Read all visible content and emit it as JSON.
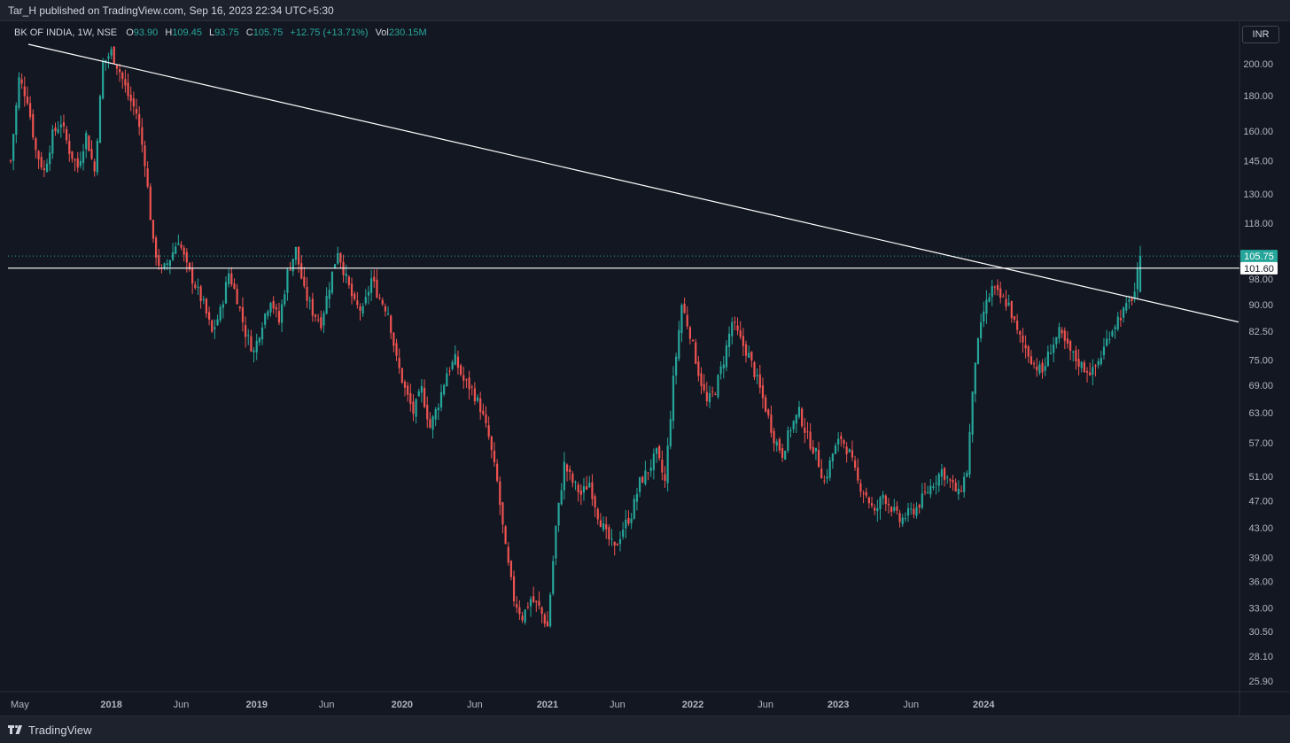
{
  "header": {
    "published_text": "Tar_H published on TradingView.com, Sep 16, 2023 22:34 UTC+5:30"
  },
  "legend": {
    "symbol": "BK OF INDIA, 1W, NSE",
    "open_label": "O",
    "open": "93.90",
    "high_label": "H",
    "high": "109.45",
    "low_label": "L",
    "low": "93.75",
    "close_label": "C",
    "close": "105.75",
    "change": "+12.75 (+13.71%)",
    "vol_label": "Vol",
    "vol": "230.15M"
  },
  "currency": "INR",
  "footer": {
    "brand": "TradingView"
  },
  "colors": {
    "up": "#26a69a",
    "down": "#ef5350",
    "background": "#131722",
    "line": "#d1d4dc"
  },
  "chart_data": {
    "type": "candlestick",
    "y_scale": "log",
    "ylim": [
      25.0,
      212.0
    ],
    "y_ticks": [
      "200.00",
      "180.00",
      "160.00",
      "145.00",
      "130.00",
      "118.00",
      "98.00",
      "90.00",
      "82.50",
      "75.00",
      "69.00",
      "63.00",
      "57.00",
      "51.00",
      "47.00",
      "43.00",
      "39.00",
      "36.00",
      "33.00",
      "30.50",
      "28.10",
      "25.90"
    ],
    "x_ticks": [
      "May",
      "2018",
      "Jun",
      "2019",
      "Jun",
      "2020",
      "Jun",
      "2021",
      "Jun",
      "2022",
      "Jun",
      "2023",
      "Jun",
      "2024"
    ],
    "last_price_label": "105.75",
    "level_label": "101.60",
    "horizontal_level": 101.6,
    "trendline": {
      "from": [
        "2017-05",
        212
      ],
      "to": [
        "2024-01",
        85
      ]
    },
    "price_path": [
      [
        0,
        145
      ],
      [
        3,
        190
      ],
      [
        6,
        178
      ],
      [
        9,
        150
      ],
      [
        12,
        140
      ],
      [
        15,
        158
      ],
      [
        18,
        165
      ],
      [
        21,
        150
      ],
      [
        24,
        142
      ],
      [
        27,
        158
      ],
      [
        30,
        140
      ],
      [
        33,
        200
      ],
      [
        36,
        208
      ],
      [
        39,
        195
      ],
      [
        42,
        180
      ],
      [
        45,
        170
      ],
      [
        48,
        145
      ],
      [
        51,
        110
      ],
      [
        54,
        100
      ],
      [
        57,
        105
      ],
      [
        60,
        112
      ],
      [
        63,
        102
      ],
      [
        66,
        96
      ],
      [
        69,
        90
      ],
      [
        72,
        82
      ],
      [
        75,
        88
      ],
      [
        78,
        100
      ],
      [
        81,
        92
      ],
      [
        84,
        82
      ],
      [
        87,
        77
      ],
      [
        90,
        85
      ],
      [
        93,
        92
      ],
      [
        96,
        85
      ],
      [
        99,
        100
      ],
      [
        102,
        108
      ],
      [
        105,
        94
      ],
      [
        108,
        88
      ],
      [
        111,
        85
      ],
      [
        114,
        96
      ],
      [
        117,
        108
      ],
      [
        120,
        98
      ],
      [
        123,
        90
      ],
      [
        126,
        88
      ],
      [
        129,
        98
      ],
      [
        132,
        92
      ],
      [
        135,
        88
      ],
      [
        138,
        75
      ],
      [
        141,
        68
      ],
      [
        144,
        63
      ],
      [
        147,
        68
      ],
      [
        150,
        60
      ],
      [
        153,
        65
      ],
      [
        156,
        72
      ],
      [
        159,
        75
      ],
      [
        162,
        70
      ],
      [
        165,
        68
      ],
      [
        168,
        64
      ],
      [
        171,
        58
      ],
      [
        174,
        50
      ],
      [
        177,
        40
      ],
      [
        180,
        34
      ],
      [
        183,
        32
      ],
      [
        186,
        34
      ],
      [
        189,
        33
      ],
      [
        192,
        31
      ],
      [
        195,
        43
      ],
      [
        198,
        53
      ],
      [
        201,
        50
      ],
      [
        204,
        48
      ],
      [
        207,
        50
      ],
      [
        210,
        45
      ],
      [
        213,
        42
      ],
      [
        216,
        40
      ],
      [
        219,
        43
      ],
      [
        222,
        45
      ],
      [
        225,
        50
      ],
      [
        228,
        52
      ],
      [
        231,
        55
      ],
      [
        234,
        50
      ],
      [
        237,
        70
      ],
      [
        240,
        90
      ],
      [
        243,
        82
      ],
      [
        246,
        72
      ],
      [
        249,
        65
      ],
      [
        252,
        68
      ],
      [
        255,
        75
      ],
      [
        258,
        85
      ],
      [
        261,
        80
      ],
      [
        264,
        76
      ],
      [
        267,
        70
      ],
      [
        270,
        64
      ],
      [
        273,
        58
      ],
      [
        276,
        55
      ],
      [
        279,
        60
      ],
      [
        282,
        63
      ],
      [
        285,
        58
      ],
      [
        288,
        55
      ],
      [
        291,
        50
      ],
      [
        294,
        55
      ],
      [
        297,
        58
      ],
      [
        300,
        55
      ],
      [
        303,
        50
      ],
      [
        306,
        48
      ],
      [
        309,
        45
      ],
      [
        312,
        48
      ],
      [
        315,
        46
      ],
      [
        318,
        44
      ],
      [
        321,
        45
      ],
      [
        324,
        46
      ],
      [
        327,
        48
      ],
      [
        330,
        50
      ],
      [
        333,
        52
      ],
      [
        336,
        50
      ],
      [
        339,
        48
      ],
      [
        342,
        52
      ],
      [
        345,
        75
      ],
      [
        348,
        88
      ],
      [
        351,
        95
      ],
      [
        354,
        92
      ],
      [
        357,
        90
      ],
      [
        360,
        82
      ],
      [
        363,
        78
      ],
      [
        366,
        74
      ],
      [
        369,
        72
      ],
      [
        372,
        78
      ],
      [
        375,
        82
      ],
      [
        378,
        78
      ],
      [
        381,
        75
      ],
      [
        384,
        73
      ],
      [
        387,
        72
      ],
      [
        390,
        76
      ],
      [
        393,
        82
      ],
      [
        396,
        86
      ],
      [
        399,
        89
      ],
      [
        402,
        94
      ],
      [
        404,
        105.75
      ]
    ],
    "price_path_note_units": "weeks since May 2017, price INR"
  }
}
